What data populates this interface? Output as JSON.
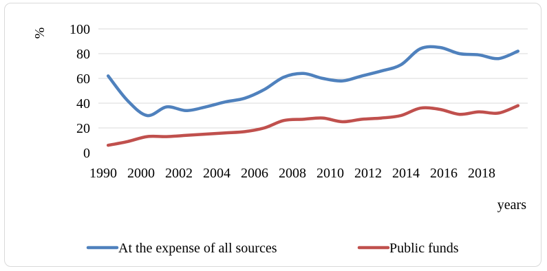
{
  "chart_data": {
    "type": "line",
    "title": "",
    "ylabel": "%",
    "xlabel": "years",
    "ylim": [
      0,
      100
    ],
    "yticks": [
      0,
      20,
      40,
      60,
      80,
      100
    ],
    "xtick_labels": [
      "1990",
      "2000",
      "2002",
      "2004",
      "2006",
      "2008",
      "2010",
      "2012",
      "2014",
      "2016",
      "2018"
    ],
    "x": [
      "1990",
      "1995",
      "2000",
      "2001",
      "2002",
      "2003",
      "2004",
      "2005",
      "2006",
      "2007",
      "2008",
      "2009",
      "2010",
      "2011",
      "2012",
      "2013",
      "2014",
      "2015",
      "2016",
      "2017",
      "2018",
      "2019"
    ],
    "grid": true,
    "legend": "bottom",
    "series": [
      {
        "name": "At the expense of all sources",
        "color": "#4f81bd",
        "values": [
          62,
          42,
          30,
          37,
          34,
          37,
          41,
          44,
          51,
          61,
          64,
          60,
          58,
          62,
          66,
          71,
          84,
          85,
          80,
          79,
          76,
          82
        ]
      },
      {
        "name": "Public funds",
        "color": "#c0504d",
        "values": [
          6,
          9,
          13,
          13,
          14,
          15,
          16,
          17,
          20,
          26,
          27,
          28,
          25,
          27,
          28,
          30,
          36,
          35,
          31,
          33,
          32,
          38
        ]
      }
    ]
  }
}
